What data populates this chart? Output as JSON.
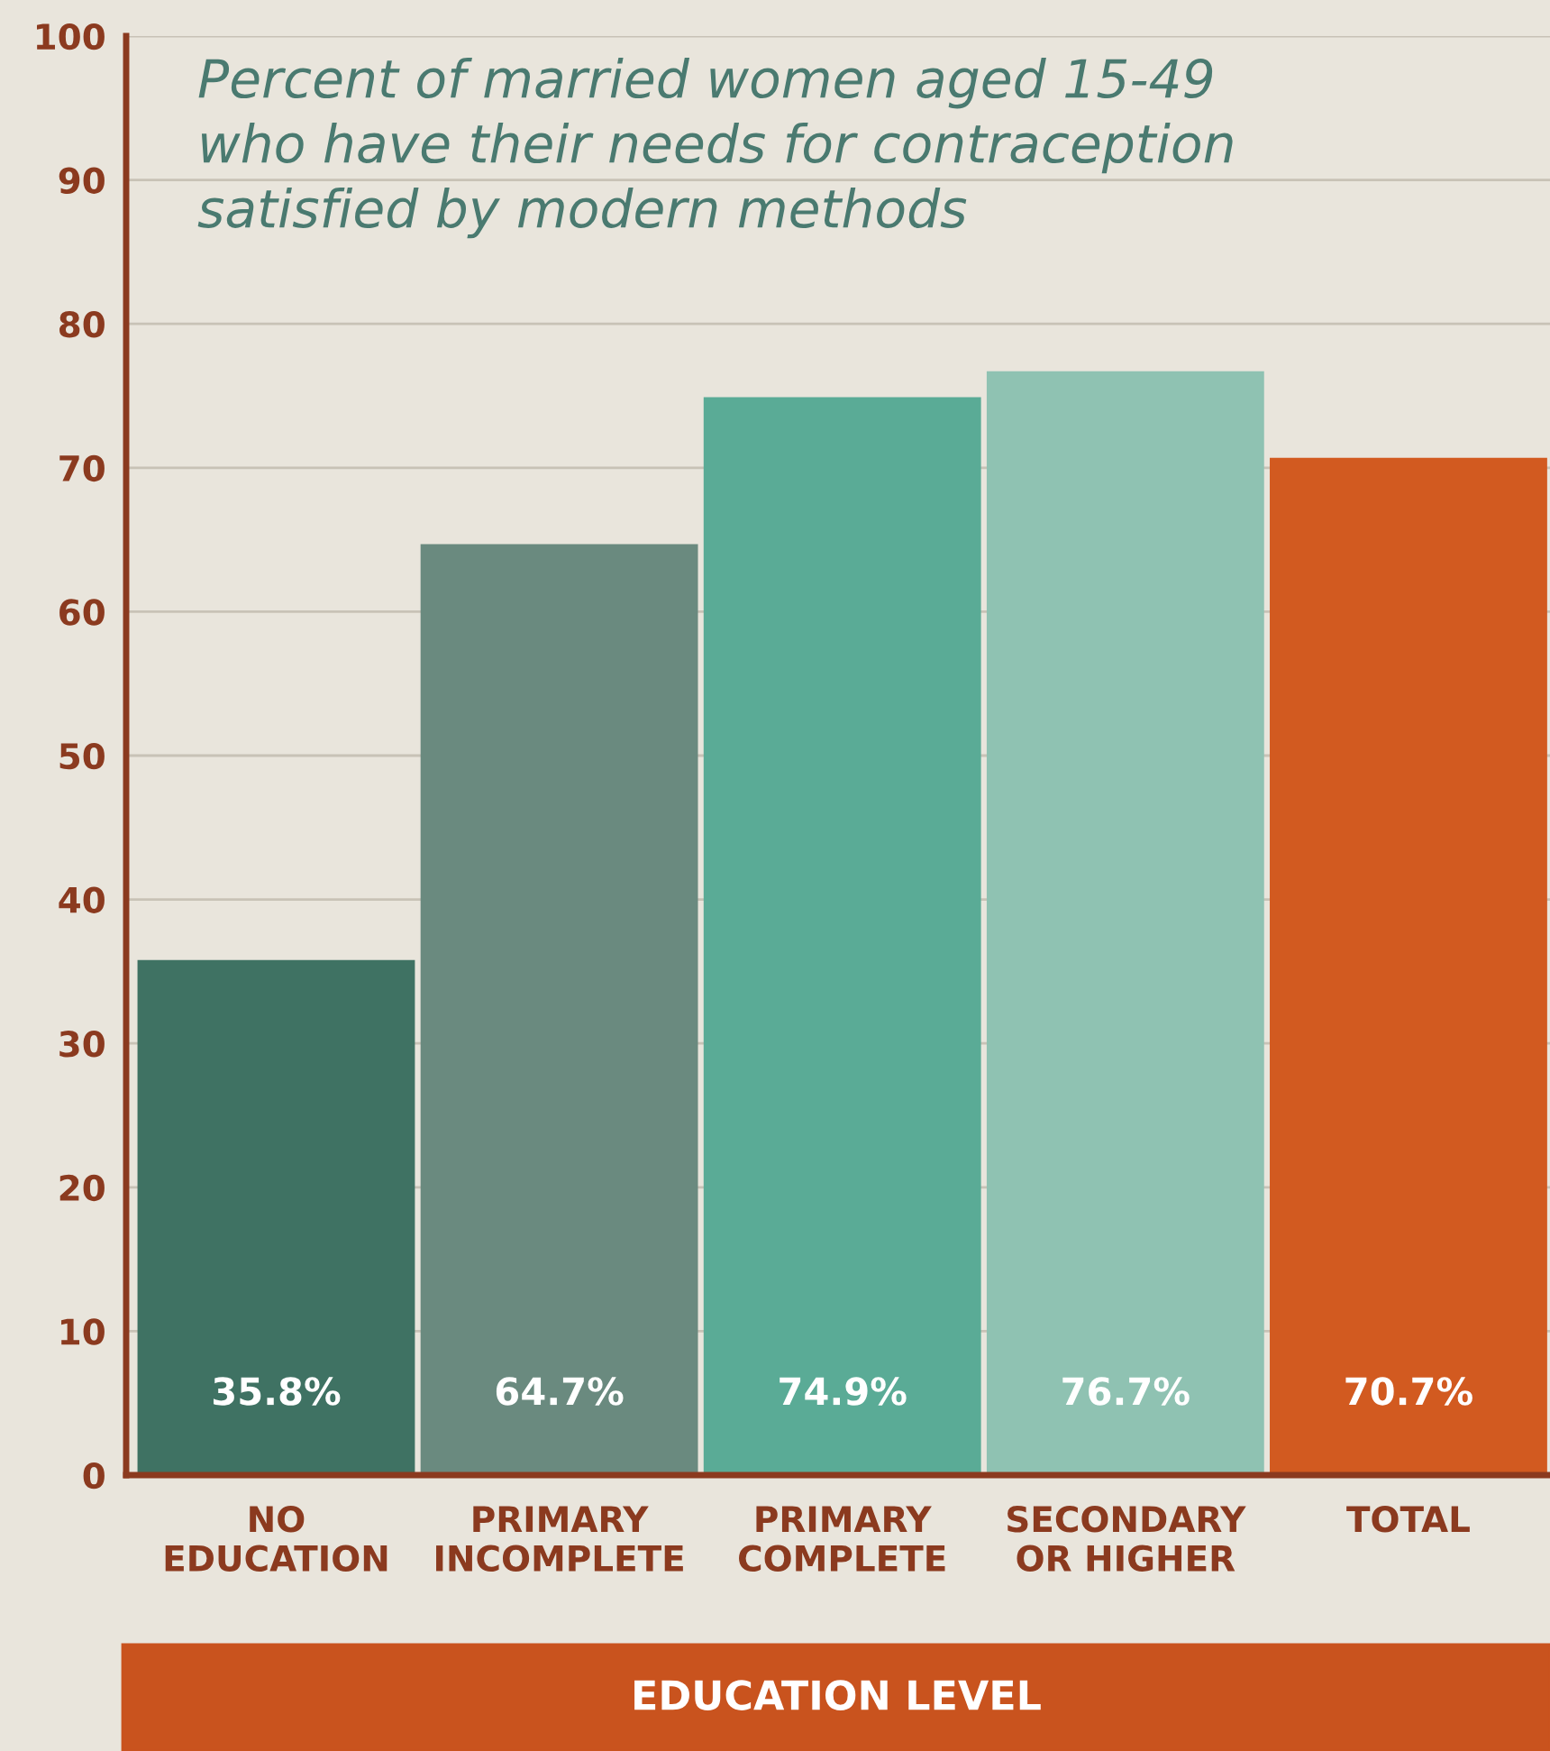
{
  "chart_data": {
    "type": "bar",
    "title": "Percent of married women aged 15-49\nwho have their needs for contraception\nsatisfied by modern methods",
    "xlabel": "EDUCATION LEVEL",
    "categories": [
      "NO\nEDUCATION",
      "PRIMARY\nINCOMPLETE",
      "PRIMARY\nCOMPLETE",
      "SECONDARY\nOR HIGHER",
      "TOTAL"
    ],
    "values": [
      35.8,
      64.7,
      74.9,
      76.7,
      70.7
    ],
    "colors": [
      "#3f7263",
      "#6a8a7f",
      "#5aab96",
      "#8fc2b2",
      "#d25a20"
    ],
    "value_labels": [
      "35.8%",
      "64.7%",
      "74.9%",
      "76.7%",
      "70.7%"
    ],
    "ylim": [
      0,
      100
    ],
    "yticks": [
      0,
      10,
      20,
      30,
      40,
      50,
      60,
      70,
      80,
      90,
      100
    ],
    "grid": "y"
  }
}
